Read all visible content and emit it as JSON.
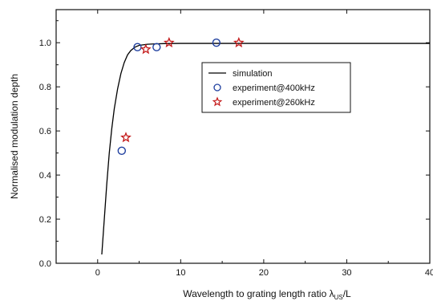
{
  "chart_data": {
    "type": "scatter",
    "title": "",
    "xlabel": "Wavelength to grating length ratio λ",
    "xlabel_subscript": "US",
    "xlabel_suffix": "/L",
    "ylabel": "Normalised modulation depth",
    "xlim": [
      -5,
      40
    ],
    "ylim": [
      0,
      1.15
    ],
    "xticks": [
      0,
      10,
      20,
      30,
      40
    ],
    "xtick_labels": [
      "0",
      "10",
      "20",
      "30",
      "40"
    ],
    "yticks": [
      0.0,
      0.2,
      0.4,
      0.6,
      0.8,
      1.0
    ],
    "ytick_labels": [
      "0.0",
      "0.2",
      "0.4",
      "0.6",
      "0.8",
      "1.0"
    ],
    "grid": false,
    "legend_position": "center-right",
    "series": [
      {
        "name": "simulation",
        "kind": "line",
        "color": "#000000",
        "x": [
          0.5,
          0.8,
          1.1,
          1.4,
          1.7,
          2.0,
          2.4,
          2.8,
          3.2,
          3.6,
          4.0,
          4.5,
          5.0,
          6.0,
          7.0,
          8.0,
          10.0,
          15.0,
          20.0,
          30.0,
          40.0
        ],
        "y": [
          0.04,
          0.2,
          0.36,
          0.5,
          0.61,
          0.7,
          0.79,
          0.86,
          0.91,
          0.945,
          0.965,
          0.98,
          0.988,
          0.993,
          0.995,
          0.996,
          0.997,
          0.997,
          0.997,
          0.997,
          0.997
        ]
      },
      {
        "name": "experiment@400kHz",
        "kind": "circle",
        "color": "#1f3f9f",
        "x": [
          2.9,
          4.8,
          7.1,
          14.3
        ],
        "y": [
          0.51,
          0.98,
          0.98,
          1.0
        ]
      },
      {
        "name": "experiment@260kHz",
        "kind": "star",
        "color": "#c41b1b",
        "x": [
          3.4,
          5.8,
          8.6,
          17.0
        ],
        "y": [
          0.57,
          0.97,
          1.0,
          1.0
        ]
      }
    ]
  }
}
